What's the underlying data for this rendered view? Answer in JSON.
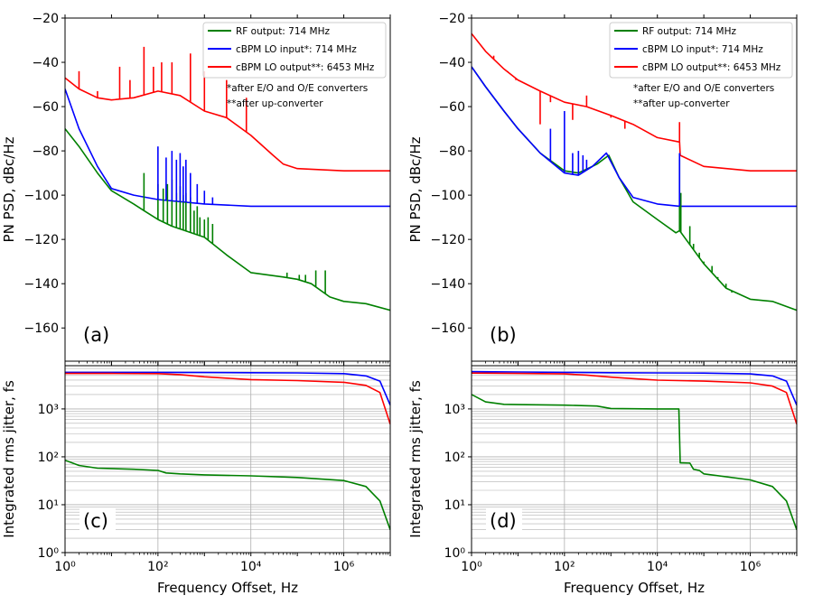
{
  "chart_data": {
    "type": "line",
    "layout": "2x2 grid, shared x-axis per column",
    "panels": [
      {
        "id": "a",
        "label": "(a)",
        "ylabel": "PN PSD, dBc/Hz",
        "yscale": "linear",
        "ylim": [
          -175,
          -20
        ],
        "yticks": [
          "−160",
          "−140",
          "−120",
          "−100",
          "−80",
          "−60",
          "−40",
          "−20"
        ],
        "xscale": "log",
        "xlim": [
          1,
          10000000
        ],
        "legend": [
          {
            "label": "RF output: 714 MHz",
            "color": "#008000"
          },
          {
            "label": "cBPM LO input*: 714 MHz",
            "color": "#0000ff"
          },
          {
            "label": "cBPM LO output**: 6453 MHz",
            "color": "#ff0000"
          }
        ],
        "notes": [
          "*after E/O and O/E converters",
          "**after up-converter"
        ],
        "series": [
          {
            "name": "RF output: 714 MHz",
            "color": "#008000",
            "x": [
              1,
              2,
              5,
              10,
              30,
              50,
              100,
              200,
              1000,
              3000,
              10000,
              50000,
              100000,
              200000,
              500000,
              1000000,
              3000000,
              10000000
            ],
            "y": [
              -70,
              -78,
              -90,
              -98,
              -104,
              -107,
              -111,
              -114,
              -119,
              -127,
              -135,
              -137,
              -138,
              -140,
              -146,
              -148,
              -149,
              -152
            ]
          },
          {
            "name": "cBPM LO input: 714 MHz",
            "color": "#0000ff",
            "x": [
              1,
              2,
              5,
              10,
              30,
              100,
              1000,
              10000,
              100000,
              1000000,
              10000000
            ],
            "y": [
              -52,
              -70,
              -87,
              -97,
              -100,
              -102,
              -104,
              -105,
              -105,
              -105,
              -105
            ]
          },
          {
            "name": "cBPM LO output: 6453 MHz",
            "color": "#ff0000",
            "x": [
              1,
              2,
              5,
              10,
              30,
              100,
              300,
              1000,
              3000,
              10000,
              30000,
              50000,
              100000,
              1000000,
              10000000
            ],
            "y": [
              -47,
              -52,
              -56,
              -57,
              -56,
              -53,
              -55,
              -62,
              -65,
              -73,
              -82,
              -86,
              -88,
              -89,
              -89
            ]
          }
        ],
        "spurs": [
          {
            "series": "RF output: 714 MHz",
            "x": [
              50,
              100,
              130,
              160,
              200,
              250,
              300,
              350,
              400,
              500,
              600,
              700,
              800,
              1000,
              1200,
              1500,
              60000,
              110000,
              150000,
              250000,
              400000
            ],
            "y": [
              -90,
              -95,
              -97,
              -95,
              -93,
              -99,
              -96,
              -100,
              -99,
              -101,
              -107,
              -105,
              -110,
              -111,
              -110,
              -113,
              -135,
              -136,
              -136,
              -134,
              -134
            ]
          },
          {
            "series": "cBPM LO input: 714 MHz",
            "x": [
              100,
              150,
              200,
              250,
              300,
              350,
              400,
              500,
              700,
              1000,
              1500
            ],
            "y": [
              -78,
              -83,
              -80,
              -84,
              -81,
              -87,
              -84,
              -90,
              -95,
              -98,
              -101
            ]
          },
          {
            "series": "cBPM LO output: 6453 MHz",
            "x": [
              2,
              5,
              15,
              25,
              50,
              80,
              120,
              200,
              500,
              1000,
              3000,
              8000
            ],
            "y": [
              -44,
              -53,
              -42,
              -48,
              -33,
              -42,
              -40,
              -40,
              -36,
              -44,
              -48,
              -56
            ]
          }
        ]
      },
      {
        "id": "b",
        "label": "(b)",
        "ylabel": "PN PSD, dBc/Hz",
        "yscale": "linear",
        "ylim": [
          -175,
          -20
        ],
        "yticks": [
          "−160",
          "−140",
          "−120",
          "−100",
          "−80",
          "−60",
          "−40",
          "−20"
        ],
        "xscale": "log",
        "xlim": [
          1,
          10000000
        ],
        "legend": [
          {
            "label": "RF output: 714 MHz",
            "color": "#008000"
          },
          {
            "label": "cBPM LO input*: 714 MHz",
            "color": "#0000ff"
          },
          {
            "label": "cBPM LO output**: 6453 MHz",
            "color": "#ff0000"
          }
        ],
        "notes": [
          "*after E/O and O/E converters",
          "**after up-converter"
        ],
        "series": [
          {
            "name": "RF output: 714 MHz",
            "color": "#008000",
            "x": [
              1,
              2,
              5,
              10,
              30,
              100,
              200,
              500,
              900,
              1500,
              3000,
              10000,
              25000,
              30000,
              100000,
              300000,
              1000000,
              3000000,
              10000000
            ],
            "y": [
              -42,
              -51,
              -62,
              -70,
              -81,
              -89,
              -90,
              -86,
              -82,
              -92,
              -103,
              -111,
              -117,
              -116,
              -131,
              -142,
              -147,
              -148,
              -152
            ]
          },
          {
            "name": "cBPM LO input: 714 MHz",
            "color": "#0000ff",
            "x": [
              1,
              2,
              5,
              10,
              30,
              100,
              200,
              400,
              800,
              1500,
              3000,
              10000,
              30000,
              100000,
              1000000,
              10000000
            ],
            "y": [
              -42,
              -51,
              -62,
              -70,
              -81,
              -90,
              -91,
              -87,
              -81,
              -92,
              -101,
              -104,
              -105,
              -105,
              -105,
              -105
            ]
          },
          {
            "name": "cBPM LO output: 6453 MHz",
            "color": "#ff0000",
            "x": [
              1,
              2,
              5,
              10,
              30,
              100,
              300,
              1000,
              3000,
              10000,
              30000,
              31000,
              100000,
              1000000,
              10000000
            ],
            "y": [
              -27,
              -35,
              -43,
              -48,
              -53,
              -58,
              -60,
              -64,
              -68,
              -74,
              -76,
              -82,
              -87,
              -89,
              -89
            ]
          }
        ],
        "spurs": [
          {
            "series": "RF output: 714 MHz",
            "x": [
              30000,
              32000,
              50000,
              60000,
              80000,
              100000,
              150000,
              200000,
              300000,
              400000
            ],
            "y": [
              -84,
              -99,
              -114,
              -122,
              -126,
              -130,
              -132,
              -137,
              -140,
              -144
            ]
          },
          {
            "series": "cBPM LO input: 714 MHz",
            "x": [
              50,
              100,
              150,
              200,
              250,
              300,
              30000
            ],
            "y": [
              -70,
              -62,
              -81,
              -80,
              -82,
              -84,
              -81
            ]
          },
          {
            "series": "cBPM LO output: 6453 MHz",
            "x": [
              3,
              6,
              9,
              30,
              50,
              150,
              300,
              1000,
              2000,
              30000
            ],
            "y": [
              -37,
              -44,
              -48,
              -68,
              -58,
              -66,
              -55,
              -65,
              -70,
              -67
            ]
          }
        ]
      },
      {
        "id": "c",
        "label": "(c)",
        "ylabel": "Integrated rms jitter, fs",
        "yscale": "log",
        "ylim": [
          1,
          8000
        ],
        "yticks": [
          "10⁰",
          "10¹",
          "10²",
          "10³"
        ],
        "xscale": "log",
        "xlim": [
          1,
          10000000
        ],
        "xlabel": "Frequency Offset, Hz",
        "xticks": [
          "10⁰",
          "10²",
          "10⁴",
          "10⁶"
        ],
        "series": [
          {
            "name": "RF output: 714 MHz",
            "color": "#008000",
            "x": [
              1,
              2,
              5,
              10,
              30,
              100,
              150,
              300,
              1000,
              10000,
              100000,
              1000000,
              3000000,
              6000000,
              10000000
            ],
            "y": [
              85,
              66,
              58,
              57,
              55,
              52,
              46,
              44,
              42,
              40,
              37,
              32,
              24,
              12,
              3
            ]
          },
          {
            "name": "cBPM LO input: 714 MHz",
            "color": "#0000ff",
            "x": [
              1,
              10,
              100,
              1000,
              10000,
              100000,
              1000000,
              3000000,
              6000000,
              10000000
            ],
            "y": [
              5800,
              5800,
              5800,
              5750,
              5700,
              5650,
              5450,
              4900,
              3800,
              1200
            ]
          },
          {
            "name": "cBPM LO output: 6453 MHz",
            "color": "#ff0000",
            "x": [
              1,
              10,
              100,
              300,
              1000,
              3000,
              10000,
              100000,
              1000000,
              3000000,
              6000000,
              10000000
            ],
            "y": [
              5500,
              5500,
              5450,
              5200,
              4700,
              4400,
              4100,
              3900,
              3600,
              3100,
              2200,
              480
            ]
          }
        ]
      },
      {
        "id": "d",
        "label": "(d)",
        "ylabel": "Integrated rms jitter, fs",
        "yscale": "log",
        "ylim": [
          1,
          8000
        ],
        "yticks": [
          "10⁰",
          "10¹",
          "10²",
          "10³"
        ],
        "xscale": "log",
        "xlim": [
          1,
          10000000
        ],
        "xlabel": "Frequency Offset, Hz",
        "xticks": [
          "10⁰",
          "10²",
          "10⁴",
          "10⁶"
        ],
        "series": [
          {
            "name": "RF output: 714 MHz",
            "color": "#008000",
            "x": [
              1,
              2,
              5,
              10,
              100,
              500,
              1000,
              10000,
              29000,
              31000,
              50000,
              60000,
              80000,
              100000,
              1000000,
              3000000,
              6000000,
              10000000
            ],
            "y": [
              2000,
              1400,
              1250,
              1230,
              1200,
              1150,
              1020,
              1000,
              1000,
              75,
              74,
              55,
              52,
              44,
              33,
              24,
              12,
              3
            ]
          },
          {
            "name": "cBPM LO input: 714 MHz",
            "color": "#0000ff",
            "x": [
              1,
              10,
              100,
              1000,
              10000,
              100000,
              1000000,
              3000000,
              6000000,
              10000000
            ],
            "y": [
              6000,
              5900,
              5800,
              5700,
              5650,
              5600,
              5400,
              4900,
              3800,
              1200
            ]
          },
          {
            "name": "cBPM LO output: 6453 MHz",
            "color": "#ff0000",
            "x": [
              1,
              10,
              100,
              300,
              1000,
              3000,
              10000,
              100000,
              1000000,
              3000000,
              6000000,
              10000000
            ],
            "y": [
              5600,
              5500,
              5400,
              5100,
              4600,
              4300,
              4000,
              3800,
              3500,
              3000,
              2200,
              480
            ]
          }
        ]
      }
    ]
  }
}
